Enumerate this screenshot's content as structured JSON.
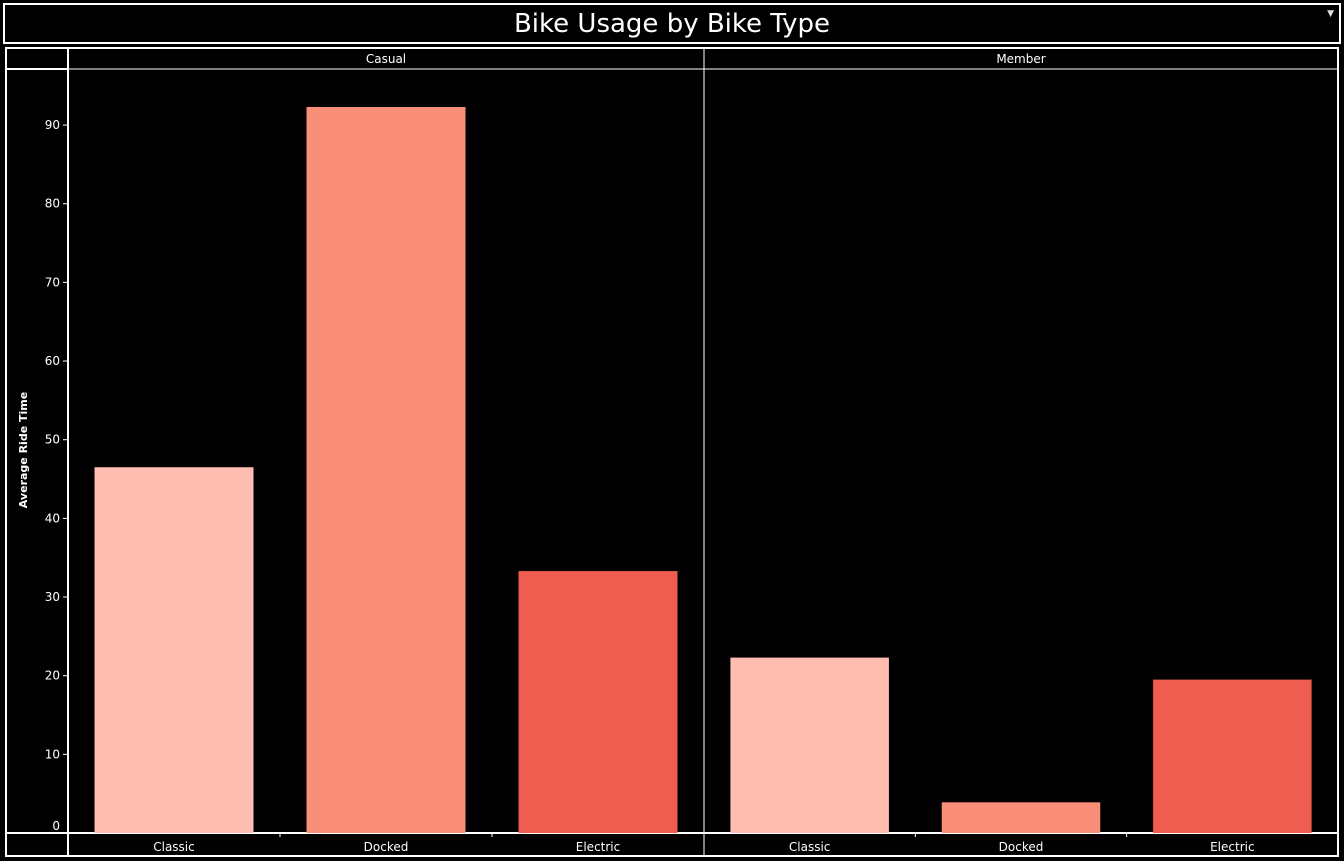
{
  "page": {
    "title": "Bike Usage by Bike Type"
  },
  "chart_data": {
    "type": "bar",
    "title": "Bike Usage by Bike Type",
    "ylabel": "Average Ride Time",
    "xlabel": "",
    "ylim": [
      0,
      97
    ],
    "yticks": [
      0,
      10,
      20,
      30,
      40,
      50,
      60,
      70,
      80,
      90
    ],
    "grid": false,
    "legend": "none",
    "panels": [
      {
        "name": "Casual",
        "categories": [
          "Classic",
          "Docked",
          "Electric"
        ],
        "values": [
          46.5,
          92.3,
          33.3
        ]
      },
      {
        "name": "Member",
        "categories": [
          "Classic",
          "Docked",
          "Electric"
        ],
        "values": [
          22.3,
          3.9,
          19.5
        ]
      }
    ],
    "colors": {
      "Classic": "#ffbcb0",
      "Docked": "#fa8f79",
      "Electric": "#ef5d50"
    }
  }
}
